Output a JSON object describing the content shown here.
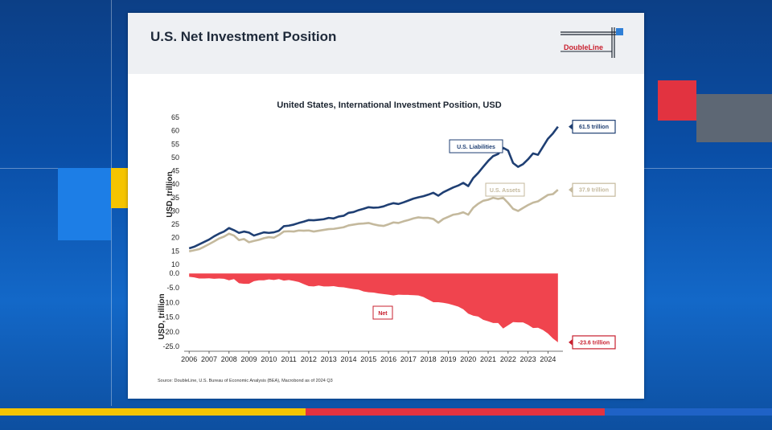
{
  "slide": {
    "title": "U.S. Net Investment Position",
    "logo_text": "DoubleLine"
  },
  "chart_data": {
    "type": "line",
    "title": "United States, International Investment Position, USD",
    "ylabel_top": "USD, trillion",
    "ylabel_bottom": "USD, trillion",
    "x_ticks": [
      "2006",
      "2007",
      "2008",
      "2009",
      "2010",
      "2011",
      "2012",
      "2013",
      "2014",
      "2015",
      "2016",
      "2017",
      "2018",
      "2019",
      "2020",
      "2021",
      "2022",
      "2023",
      "2024"
    ],
    "top_ylim": [
      10,
      65
    ],
    "top_yticks": [
      "10",
      "15",
      "20",
      "25",
      "30",
      "35",
      "40",
      "45",
      "50",
      "55",
      "60",
      "65"
    ],
    "bottom_ylim": [
      -25,
      0
    ],
    "bottom_yticks": [
      "0.0",
      "-5.0",
      "-10.0",
      "-15.0",
      "-20.0",
      "-25.0"
    ],
    "x": [
      2006.0,
      2006.25,
      2006.5,
      2006.75,
      2007.0,
      2007.25,
      2007.5,
      2007.75,
      2008.0,
      2008.25,
      2008.5,
      2008.75,
      2009.0,
      2009.25,
      2009.5,
      2009.75,
      2010.0,
      2010.25,
      2010.5,
      2010.75,
      2011.0,
      2011.25,
      2011.5,
      2011.75,
      2012.0,
      2012.25,
      2012.5,
      2012.75,
      2013.0,
      2013.25,
      2013.5,
      2013.75,
      2014.0,
      2014.25,
      2014.5,
      2014.75,
      2015.0,
      2015.25,
      2015.5,
      2015.75,
      2016.0,
      2016.25,
      2016.5,
      2016.75,
      2017.0,
      2017.25,
      2017.5,
      2017.75,
      2018.0,
      2018.25,
      2018.5,
      2018.75,
      2019.0,
      2019.25,
      2019.5,
      2019.75,
      2020.0,
      2020.25,
      2020.5,
      2020.75,
      2021.0,
      2021.25,
      2021.5,
      2021.75,
      2022.0,
      2022.25,
      2022.5,
      2022.75,
      2023.0,
      2023.25,
      2023.5,
      2023.75,
      2024.0,
      2024.25,
      2024.5
    ],
    "series": [
      {
        "name": "U.S. Liabilities",
        "color": "#1f3f73",
        "end_label": "61.5 trillion",
        "values": [
          16.0,
          16.6,
          17.5,
          18.4,
          19.3,
          20.5,
          21.5,
          22.3,
          23.6,
          22.8,
          21.8,
          22.3,
          21.9,
          20.8,
          21.4,
          22.0,
          21.8,
          22.0,
          22.6,
          24.3,
          24.5,
          24.9,
          25.5,
          26.0,
          26.6,
          26.5,
          26.7,
          26.9,
          27.4,
          27.2,
          27.9,
          28.2,
          29.3,
          29.6,
          30.3,
          30.8,
          31.4,
          31.2,
          31.3,
          31.7,
          32.4,
          32.9,
          32.6,
          33.2,
          33.9,
          34.6,
          35.1,
          35.5,
          36.1,
          36.8,
          35.7,
          37.0,
          37.9,
          38.8,
          39.5,
          40.5,
          39.3,
          42.3,
          44.2,
          46.5,
          48.7,
          50.5,
          51.3,
          53.6,
          52.6,
          47.9,
          46.5,
          47.5,
          49.3,
          51.5,
          51.0,
          54.0,
          57.0,
          59.0,
          61.5
        ]
      },
      {
        "name": "U.S. Assets",
        "color": "#c4b99d",
        "end_label": "37.9 trillion",
        "values": [
          14.9,
          15.3,
          15.7,
          16.6,
          17.6,
          18.6,
          19.7,
          20.4,
          21.5,
          20.8,
          19.1,
          19.5,
          18.3,
          18.8,
          19.2,
          19.8,
          20.2,
          20.0,
          21.0,
          22.3,
          22.4,
          22.3,
          22.7,
          22.6,
          22.7,
          22.3,
          22.6,
          22.9,
          23.2,
          23.3,
          23.6,
          23.9,
          24.6,
          24.9,
          25.2,
          25.3,
          25.5,
          25.0,
          24.6,
          24.4,
          25.0,
          25.7,
          25.5,
          26.1,
          26.6,
          27.2,
          27.6,
          27.4,
          27.4,
          27.0,
          25.6,
          27.0,
          27.8,
          28.6,
          28.9,
          29.5,
          28.6,
          31.2,
          32.7,
          33.8,
          34.2,
          34.9,
          34.5,
          34.9,
          33.0,
          30.8,
          30.0,
          31.1,
          32.2,
          33.1,
          33.6,
          34.8,
          36.0,
          36.3,
          37.9
        ]
      },
      {
        "name": "Net",
        "color": "#f0444e",
        "end_label": "-23.6 trillion",
        "values": [
          -1.2,
          -1.4,
          -1.8,
          -1.8,
          -1.7,
          -1.9,
          -1.8,
          -1.9,
          -2.4,
          -2.0,
          -3.4,
          -3.6,
          -3.6,
          -2.7,
          -2.4,
          -2.4,
          -2.1,
          -2.3,
          -2.0,
          -2.5,
          -2.3,
          -2.6,
          -3.0,
          -3.7,
          -4.4,
          -4.5,
          -4.2,
          -4.5,
          -4.5,
          -4.4,
          -4.7,
          -4.8,
          -5.1,
          -5.4,
          -5.6,
          -6.2,
          -6.5,
          -6.6,
          -6.9,
          -7.1,
          -7.3,
          -7.6,
          -7.3,
          -7.4,
          -7.4,
          -7.5,
          -7.6,
          -8.1,
          -9.0,
          -9.9,
          -9.9,
          -10.1,
          -10.4,
          -10.9,
          -11.4,
          -12.3,
          -13.8,
          -14.5,
          -14.8,
          -15.9,
          -16.4,
          -17.0,
          -17.0,
          -18.9,
          -17.8,
          -16.7,
          -16.8,
          -16.8,
          -17.6,
          -18.7,
          -18.6,
          -19.4,
          -20.6,
          -22.3,
          -23.6
        ]
      }
    ],
    "annotations": {
      "liabilities_label": "U.S. Liabilities",
      "assets_label": "U.S. Assets",
      "net_label": "Net"
    },
    "source": "Source: DoubleLine, U.S. Bureau of Economic Analysis (BEA), Macrobond as of 2024 Q3",
    "colors": {
      "liabilities": "#1f3f73",
      "assets": "#c4b99d",
      "net": "#f0444e",
      "net_label": "#c8202f"
    }
  }
}
